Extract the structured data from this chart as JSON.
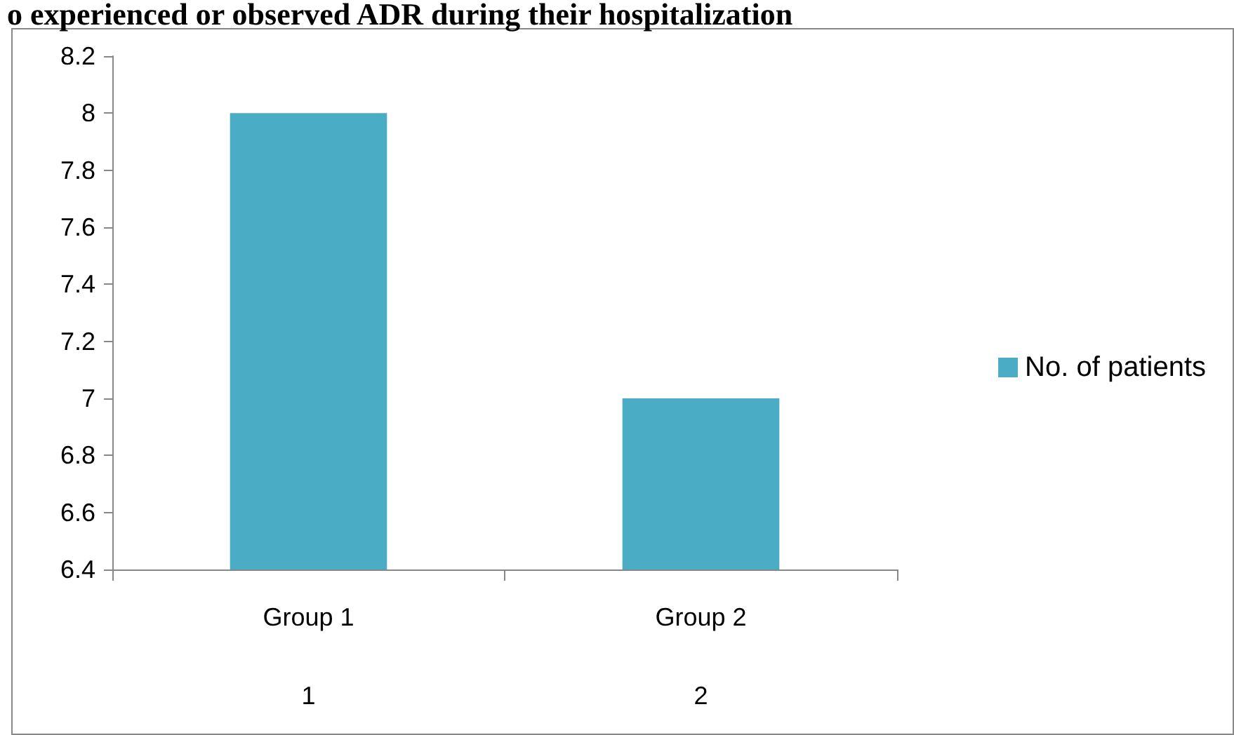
{
  "chart_data": {
    "type": "bar",
    "title": "o experienced or observed ADR during their hospitalization",
    "categories": [
      "Group 1\n1",
      "Group 2\n2"
    ],
    "series": [
      {
        "name": "No. of patients",
        "color": "#4bacc6",
        "values": [
          8,
          7
        ]
      }
    ],
    "ylim": [
      6.4,
      8.2
    ],
    "yticks": [
      6.4,
      6.6,
      6.8,
      7,
      7.2,
      7.4,
      7.6,
      7.8,
      8,
      8.2
    ],
    "grid": false,
    "legend": "right"
  }
}
